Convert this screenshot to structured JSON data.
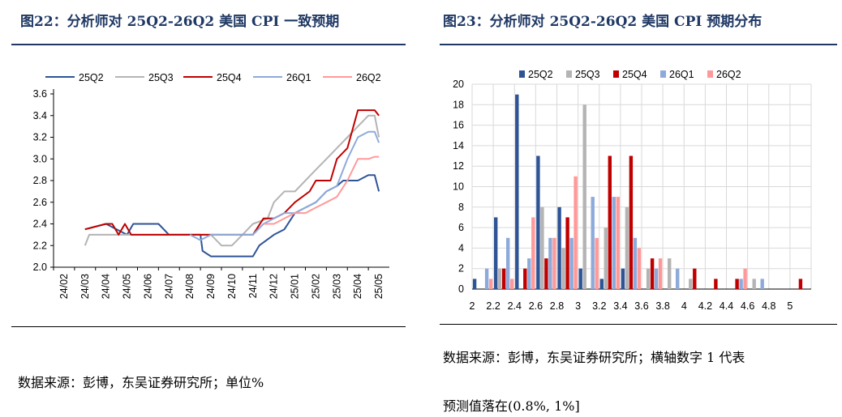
{
  "left_panel": {
    "title": "图22：分析师对 25Q2-26Q2 美国 CPI 一致预期",
    "source": "数据来源：彭博，东吴证券研究所；单位%"
  },
  "right_panel": {
    "title": "图23：分析师对 25Q2-26Q2 美国 CPI 预期分布",
    "source_line1": "数据来源：彭博，东吴证券研究所；横轴数字 1 代表",
    "source_line2": "预测值落在(0.8%, 1%]"
  },
  "chart_data": [
    {
      "type": "line",
      "title": "",
      "x_ticks": [
        "24/02",
        "24/03",
        "24/04",
        "24/05",
        "24/06",
        "24/07",
        "24/08",
        "24/09",
        "24/10",
        "24/11",
        "24/12",
        "25/01",
        "25/02",
        "25/03",
        "25/04",
        "25/05"
      ],
      "ylim": [
        2.0,
        3.6
      ],
      "y_ticks": [
        "2.0",
        "2.2",
        "2.4",
        "2.6",
        "2.8",
        "3.0",
        "3.2",
        "3.4",
        "3.6"
      ],
      "legend_position": "top",
      "series": [
        {
          "name": "25Q2",
          "color": "#2e5496",
          "points": [
            [
              1,
              2.35
            ],
            [
              2,
              2.4
            ],
            [
              3,
              2.3
            ],
            [
              3.3,
              2.4
            ],
            [
              4.5,
              2.4
            ],
            [
              5,
              2.3
            ],
            [
              6.5,
              2.3
            ],
            [
              6.6,
              2.15
            ],
            [
              7,
              2.1
            ],
            [
              9,
              2.1
            ],
            [
              9.3,
              2.2
            ],
            [
              10,
              2.3
            ],
            [
              10.5,
              2.35
            ],
            [
              11,
              2.5
            ],
            [
              11.5,
              2.55
            ],
            [
              12,
              2.6
            ],
            [
              12.5,
              2.7
            ],
            [
              13,
              2.75
            ],
            [
              13.3,
              2.8
            ],
            [
              14,
              2.8
            ],
            [
              14.5,
              2.85
            ],
            [
              14.8,
              2.85
            ],
            [
              15,
              2.7
            ]
          ]
        },
        {
          "name": "25Q3",
          "color": "#b4b4b4",
          "points": [
            [
              1,
              2.2
            ],
            [
              1.2,
              2.3
            ],
            [
              2,
              2.3
            ],
            [
              4,
              2.3
            ],
            [
              6,
              2.3
            ],
            [
              7,
              2.3
            ],
            [
              7.5,
              2.2
            ],
            [
              8,
              2.2
            ],
            [
              8.5,
              2.3
            ],
            [
              9,
              2.4
            ],
            [
              9.7,
              2.45
            ],
            [
              10,
              2.6
            ],
            [
              10.5,
              2.7
            ],
            [
              11,
              2.7
            ],
            [
              11.5,
              2.8
            ],
            [
              12,
              2.9
            ],
            [
              12.5,
              3.0
            ],
            [
              13,
              3.1
            ],
            [
              13.5,
              3.2
            ],
            [
              14,
              3.3
            ],
            [
              14.5,
              3.4
            ],
            [
              14.8,
              3.4
            ],
            [
              15,
              3.2
            ]
          ]
        },
        {
          "name": "25Q4",
          "color": "#c00000",
          "points": [
            [
              1,
              2.35
            ],
            [
              2,
              2.4
            ],
            [
              2.3,
              2.4
            ],
            [
              2.6,
              2.3
            ],
            [
              2.9,
              2.4
            ],
            [
              3.2,
              2.3
            ],
            [
              5,
              2.3
            ],
            [
              6,
              2.3
            ],
            [
              7,
              2.3
            ],
            [
              9,
              2.3
            ],
            [
              9.5,
              2.45
            ],
            [
              10,
              2.45
            ],
            [
              10.5,
              2.5
            ],
            [
              11,
              2.6
            ],
            [
              11.7,
              2.7
            ],
            [
              12,
              2.8
            ],
            [
              12.7,
              2.8
            ],
            [
              13,
              3.0
            ],
            [
              13.5,
              3.1
            ],
            [
              14,
              3.45
            ],
            [
              14.5,
              3.45
            ],
            [
              14.8,
              3.45
            ],
            [
              15,
              3.4
            ]
          ]
        },
        {
          "name": "26Q1",
          "color": "#8eaadb",
          "points": [
            [
              6,
              2.3
            ],
            [
              6.5,
              2.25
            ],
            [
              7,
              2.3
            ],
            [
              8,
              2.3
            ],
            [
              9,
              2.3
            ],
            [
              9.5,
              2.4
            ],
            [
              10,
              2.45
            ],
            [
              10.5,
              2.5
            ],
            [
              11,
              2.5
            ],
            [
              11.5,
              2.55
            ],
            [
              12,
              2.6
            ],
            [
              12.5,
              2.7
            ],
            [
              13,
              2.75
            ],
            [
              13.5,
              3.0
            ],
            [
              14,
              3.2
            ],
            [
              14.5,
              3.25
            ],
            [
              14.8,
              3.25
            ],
            [
              15,
              3.15
            ]
          ]
        },
        {
          "name": "26Q2",
          "color": "#ff9999",
          "points": [
            [
              9.5,
              2.4
            ],
            [
              10,
              2.4
            ],
            [
              10.5,
              2.45
            ],
            [
              11,
              2.5
            ],
            [
              11.5,
              2.5
            ],
            [
              12,
              2.55
            ],
            [
              12.5,
              2.6
            ],
            [
              13,
              2.65
            ],
            [
              13.5,
              2.8
            ],
            [
              14,
              3.0
            ],
            [
              14.5,
              3.0
            ],
            [
              14.8,
              3.02
            ],
            [
              15,
              3.02
            ]
          ]
        }
      ]
    },
    {
      "type": "bar",
      "title": "",
      "categories": [
        "2",
        "2.2",
        "2.4",
        "2.6",
        "2.8",
        "3",
        "3.2",
        "3.4",
        "3.6",
        "3.8",
        "4",
        "4.2",
        "4.4",
        "4.6",
        "4.8",
        "5"
      ],
      "x_ticks": [
        "2",
        "2.2",
        "2.4",
        "2.6",
        "2.8",
        "3",
        "3.2",
        "3.4",
        "3.6",
        "3.8",
        "4",
        "4.2",
        "4.4",
        "4.6",
        "4.8",
        "5"
      ],
      "ylim": [
        0,
        20
      ],
      "y_ticks": [
        "0",
        "2",
        "4",
        "6",
        "8",
        "10",
        "12",
        "14",
        "16",
        "18",
        "20"
      ],
      "legend_position": "top",
      "series": [
        {
          "name": "25Q2",
          "color": "#2e5496",
          "values": [
            1,
            7,
            19,
            13,
            8,
            2,
            1,
            2,
            0,
            0,
            0,
            0,
            0,
            0,
            0,
            0
          ]
        },
        {
          "name": "25Q3",
          "color": "#b4b4b4",
          "values": [
            0,
            2,
            0,
            8,
            4,
            18,
            6,
            8,
            2,
            3,
            1,
            0,
            0,
            1,
            0,
            0
          ]
        },
        {
          "name": "25Q4",
          "color": "#c00000",
          "values": [
            0,
            2,
            2,
            3,
            7,
            0,
            13,
            13,
            3,
            0,
            2,
            1,
            1,
            0,
            0,
            1
          ]
        },
        {
          "name": "26Q1",
          "color": "#8eaadb",
          "values": [
            2,
            5,
            3,
            5,
            5,
            9,
            9,
            5,
            2,
            2,
            0,
            0,
            1,
            1,
            0,
            0
          ]
        },
        {
          "name": "26Q2",
          "color": "#ff9999",
          "values": [
            1,
            1,
            7,
            5,
            11,
            5,
            9,
            4,
            3,
            0,
            0,
            0,
            2,
            0,
            0,
            0
          ]
        }
      ]
    }
  ]
}
